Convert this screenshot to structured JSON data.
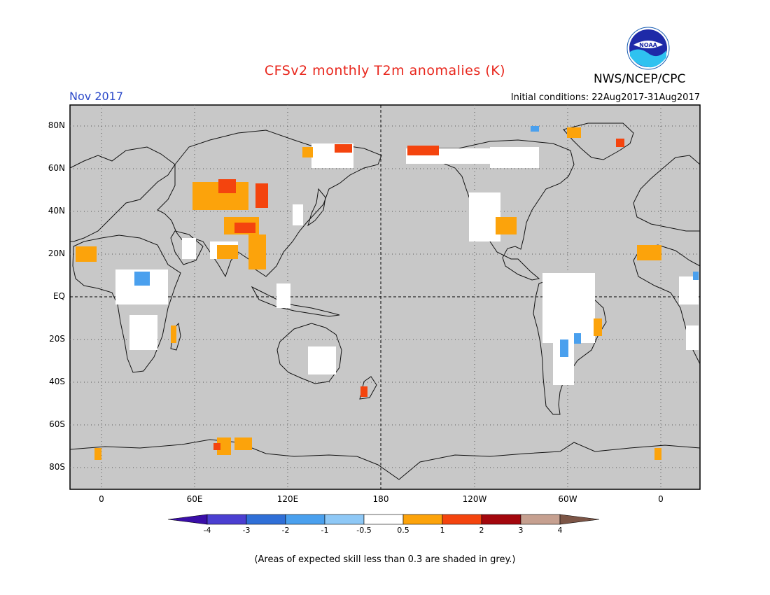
{
  "header": {
    "title": "CFSv2 monthly T2m anomalies (K)",
    "agency": "NWS/NCEP/CPC",
    "month": "Nov 2017",
    "initial_conditions": "Initial conditions: 22Aug2017-31Aug2017",
    "logo_text": "NOAA"
  },
  "map": {
    "projection": "equirectangular, centered 180",
    "background_color": "#c8c8c8",
    "lat_labels": [
      "80N",
      "60N",
      "40N",
      "20N",
      "EQ",
      "20S",
      "40S",
      "60S",
      "80S"
    ],
    "lon_labels": [
      "0",
      "60E",
      "120E",
      "180",
      "120W",
      "60W",
      "0"
    ],
    "gridlines": "dotted, 20 deg; equator and 180 dashed"
  },
  "colorbar": {
    "tick_labels": [
      "-4",
      "-3",
      "-2",
      "-1",
      "-0.5",
      "0.5",
      "1",
      "2",
      "3",
      "4"
    ],
    "colors": [
      "#3a0ea8",
      "#4b3fd1",
      "#2f6fd7",
      "#4aa0ee",
      "#8ec8f6",
      "#ffffff",
      "#fca30b",
      "#f4440e",
      "#a3070d",
      "#c6a090",
      "#7c5546"
    ]
  },
  "footer": {
    "note": "(Areas of expected skill less than 0.3 are shaded in grey.)"
  }
}
